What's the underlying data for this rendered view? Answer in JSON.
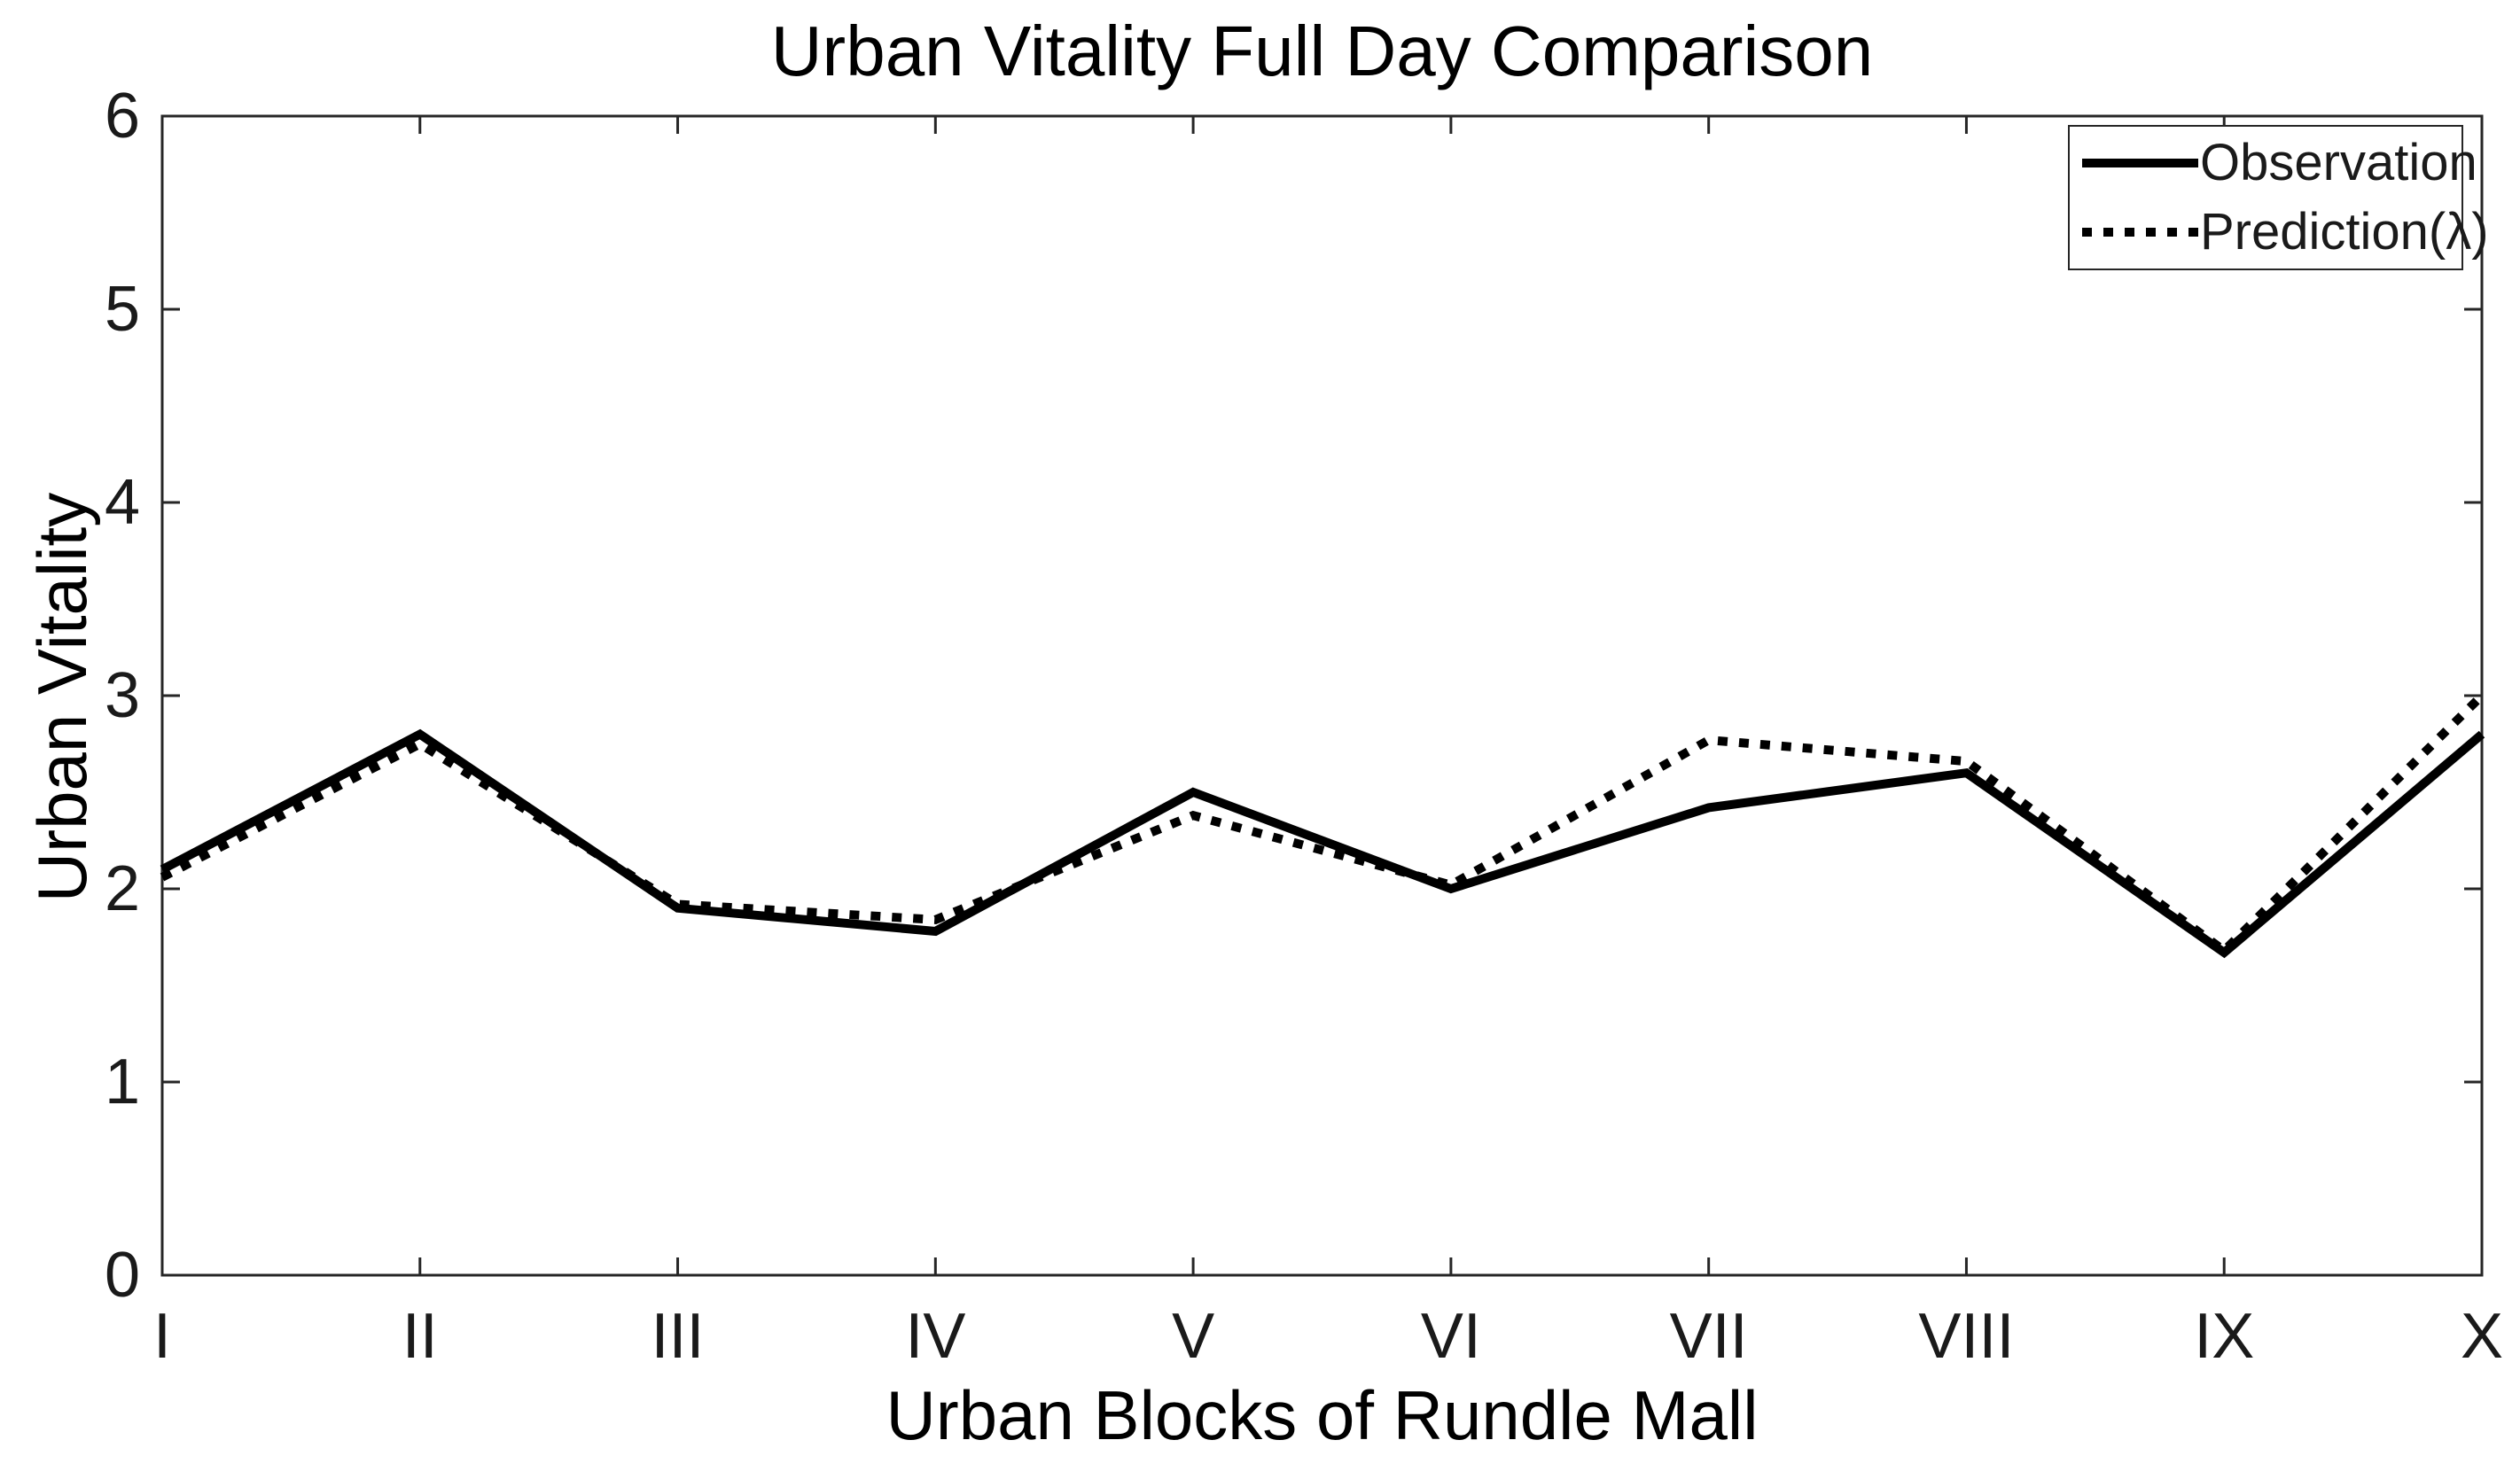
{
  "chart_data": {
    "type": "line",
    "title": "Urban Vitality Full Day Comparison",
    "xlabel": "Urban Blocks of Rundle Mall",
    "ylabel": "Urban Vitality",
    "categories": [
      "I",
      "II",
      "III",
      "IV",
      "V",
      "VI",
      "VII",
      "VIII",
      "IX",
      "X"
    ],
    "series": [
      {
        "name": "Observation",
        "style": "solid",
        "color": "#000000",
        "values": [
          2.1,
          2.8,
          1.9,
          1.78,
          2.5,
          2.0,
          2.42,
          2.6,
          1.67,
          2.8
        ]
      },
      {
        "name": "Prediction(λ)",
        "style": "dotted",
        "color": "#000000",
        "values": [
          2.06,
          2.75,
          1.92,
          1.84,
          2.38,
          2.02,
          2.77,
          2.66,
          1.68,
          3.0
        ]
      }
    ],
    "legend": [
      "Observation",
      "Prediction(λ)"
    ],
    "legend_position": "top-right",
    "ylim": [
      0,
      6
    ],
    "yticks": [
      "0",
      "1",
      "2",
      "3",
      "4",
      "5",
      "6"
    ],
    "grid": false,
    "background": "#ffffff",
    "axis_color": "#262626"
  }
}
